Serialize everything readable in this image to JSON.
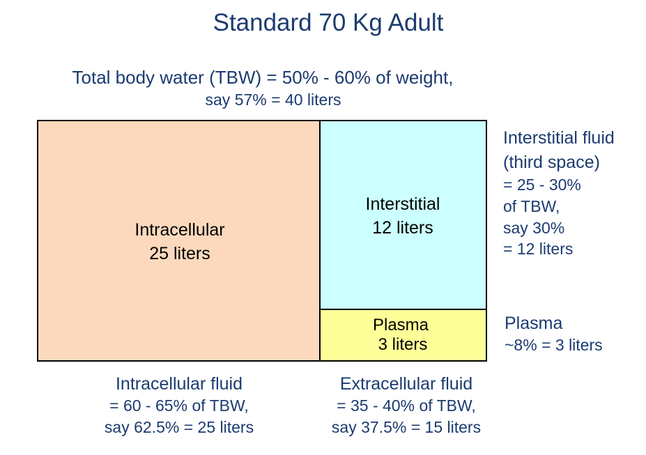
{
  "title": "Standard 70 Kg Adult",
  "total_body_water": {
    "lines": [
      "Total body water (TBW) = 50% - 60% of weight,",
      "say 57% = 40 liters"
    ]
  },
  "compartments": [
    {
      "lines": [
        "Intracellular",
        "25 liters"
      ]
    },
    {
      "lines": [
        "Interstitial",
        "12 liters"
      ]
    },
    {
      "lines": [
        "Plasma",
        "3 liters"
      ]
    }
  ],
  "notes": {
    "interstitial": {
      "heading": [
        "Interstitial fluid",
        "(third space)"
      ],
      "lines": [
        "= 25 - 30%",
        "of TBW,",
        "say 30%",
        "= 12 liters"
      ]
    },
    "plasma": {
      "heading": [
        "Plasma"
      ],
      "lines": [
        "~8% = 3 liters"
      ]
    },
    "intracellular": {
      "heading": [
        "Intracellular fluid"
      ],
      "lines": [
        "= 60 - 65% of TBW,",
        "say 62.5% = 25 liters"
      ]
    },
    "extracellular": {
      "heading": [
        "Extracellular fluid"
      ],
      "lines": [
        "= 35 - 40% of TBW,",
        "say 37.5% = 15 liters"
      ]
    }
  }
}
